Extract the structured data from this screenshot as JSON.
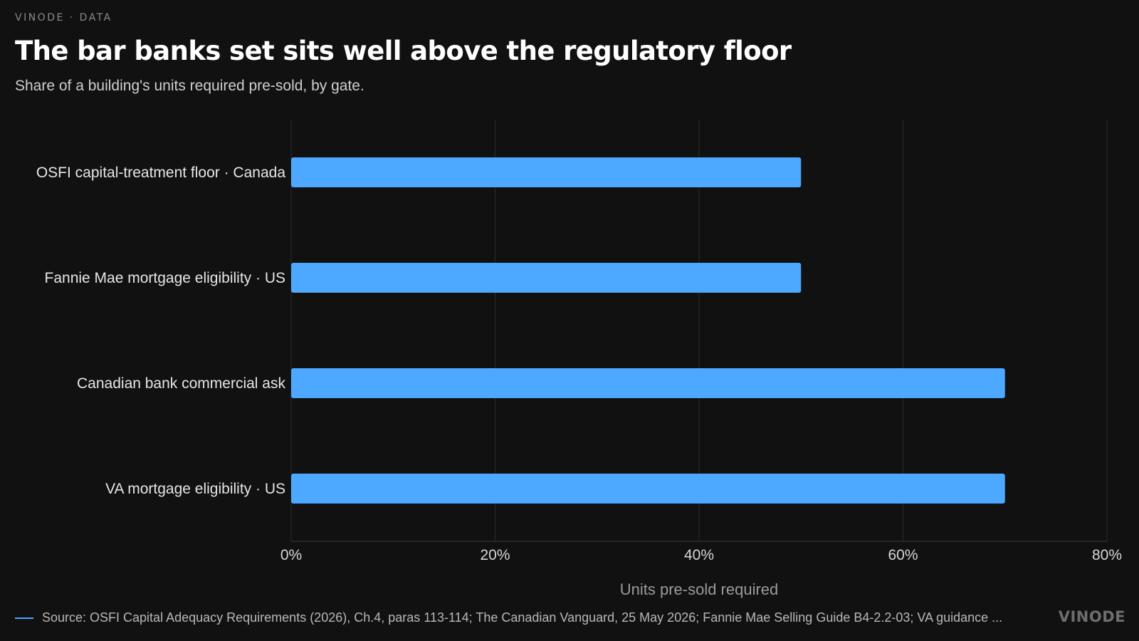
{
  "header": {
    "kicker": "VINODE · DATA",
    "title": "The bar banks set sits well above the regulatory floor",
    "subtitle": "Share of a building's units required pre-sold, by gate."
  },
  "footer": {
    "source": "Source: OSFI Capital Adequacy Requirements (2026), Ch.4, paras 113-114; The Canadian Vanguard, 25 May 2026; Fannie Mae Selling Guide B4-2.2-03; VA guidance ...",
    "brand": "VINODE"
  },
  "colors": {
    "background": "#111111",
    "bar": "#4da8ff",
    "grid": "#2a2a2a",
    "text": "#e6e6e6",
    "axis_title": "#9a9a9a"
  },
  "chart_data": {
    "type": "bar",
    "orientation": "horizontal",
    "categories": [
      "OSFI capital-treatment floor · Canada",
      "Fannie Mae mortgage eligibility · US",
      "Canadian bank commercial ask",
      "VA mortgage eligibility · US"
    ],
    "values": [
      50,
      50,
      70,
      70
    ],
    "xlabel": "Units pre-sold required",
    "ylabel": "",
    "xlim": [
      0,
      80
    ],
    "x_ticks": [
      "0%",
      "20%",
      "40%",
      "60%",
      "80%"
    ],
    "grid": true
  }
}
